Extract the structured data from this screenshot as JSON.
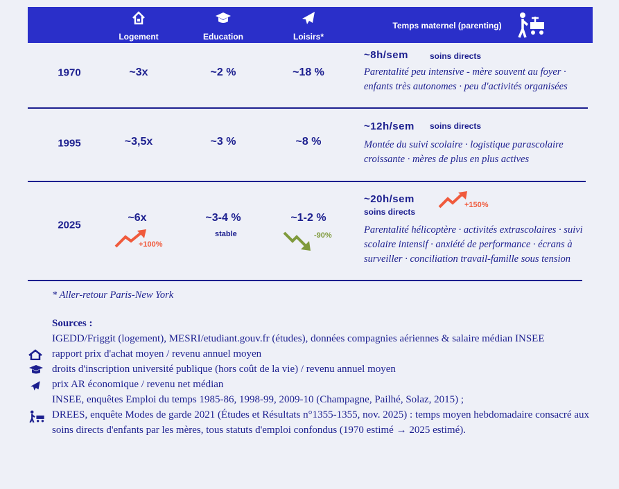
{
  "header": {
    "columns": [
      "Logement",
      "Education",
      "Loisirs*",
      "Temps maternel (parenting)"
    ]
  },
  "rows": [
    {
      "year": "1970",
      "logement": "~3x",
      "education": "~2 %",
      "loisirs": "~18 %",
      "time": "~8h/sem",
      "time_note": "soins directs",
      "description": [
        "Parentalité peu intensive - mère souvent au foyer ·",
        "enfants très autonomes · peu d'activités organisées"
      ]
    },
    {
      "year": "1995",
      "logement": "~3,5x",
      "education": "~3 %",
      "loisirs": "~8 %",
      "time": "~12h/sem",
      "time_note": "soins directs",
      "description": [
        "Montée du suivi scolaire · logistique parascolaire",
        "croissante · mères de plus en plus actives"
      ]
    },
    {
      "year": "2025",
      "logement": "~6x",
      "logement_change": "+100%",
      "education": "~3-4 %",
      "education_note": "stable",
      "loisirs": "~1-2 %",
      "loisirs_change": "-90%",
      "time": "~20h/sem",
      "time_note": "soins directs",
      "time_change": "+150%",
      "description": [
        "Parentalité hélicoptère · activités extrascolaires · suivi",
        "scolaire intensif · anxiété de performance · écrans à",
        "surveiller · conciliation travail-famille sous tension"
      ]
    }
  ],
  "footnote": "* Aller-retour Paris-New York",
  "sources": {
    "title": "Sources :",
    "intro": "IGEDD/Friggit (logement), MESRI/etudiant.gouv.fr (études), données compagnies aériennes & salaire médian INSEE",
    "items": [
      "rapport prix d'achat moyen / revenu annuel moyen",
      "droits d'inscription université publique (hors coût de la vie) / revenu annuel moyen",
      "prix AR économique / revenu net médian",
      "INSEE, enquêtes Emploi du temps 1985-86, 1998-99, 2009-10 (Champagne, Pailhé, Solaz, 2015) ;",
      "DREES, enquête Modes de garde 2021 (Études et Résultats n°1355-1355, nov. 2025) : temps moyen hebdomadaire consacré aux soins directs d'enfants par les mères, tous statuts d'emploi confondus (1970 estimé → 2025 estimé)."
    ]
  }
}
